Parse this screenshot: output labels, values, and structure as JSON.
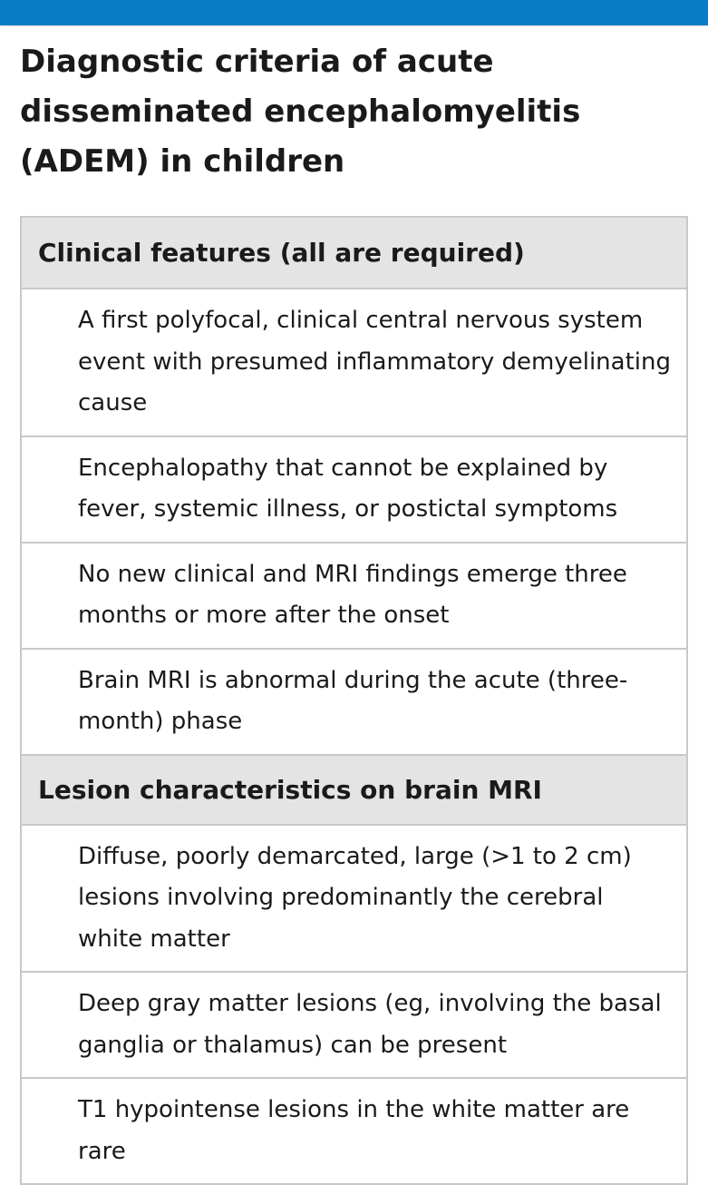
{
  "title": "Diagnostic criteria of acute disseminated encephalomyelitis (ADEM) in children",
  "sections": [
    {
      "header": "Clinical features (all are required)",
      "items": [
        "A first polyfocal, clinical central nervous system event with presumed inflammatory demyelinating cause",
        "Encephalopathy that cannot be explained by fever, systemic illness, or postictal symptoms",
        "No new clinical and MRI findings emerge three months or more after the onset",
        "Brain MRI is abnormal during the acute (three-month) phase"
      ]
    },
    {
      "header": "Lesion characteristics on brain MRI",
      "items": [
        "Diffuse, poorly demarcated, large (>1 to 2 cm) lesions involving predominantly the cerebral white matter",
        "Deep gray matter lesions (eg, involving the basal ganglia or thalamus) can be present",
        "T1 hypointense lesions in the white matter are rare"
      ]
    }
  ],
  "colors": {
    "top_bar": "#0a7bc6",
    "header_background": "#e4e4e4",
    "border": "#c8c8c8",
    "text": "#1a1a1a"
  }
}
